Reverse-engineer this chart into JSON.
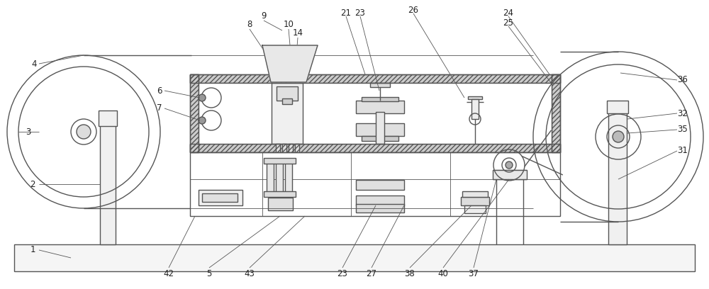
{
  "bg_color": "#ffffff",
  "line_color": "#555555",
  "lw": 1.0,
  "tlw": 0.6,
  "fs": 8.5,
  "fc": "#222222",
  "figsize": [
    10.0,
    4.08
  ],
  "dpi": 100,
  "xlim": [
    0,
    1000
  ],
  "ylim": [
    0,
    408
  ],
  "hatch_color": "#888888",
  "fill_gray": "#cccccc",
  "fill_light": "#eeeeee"
}
